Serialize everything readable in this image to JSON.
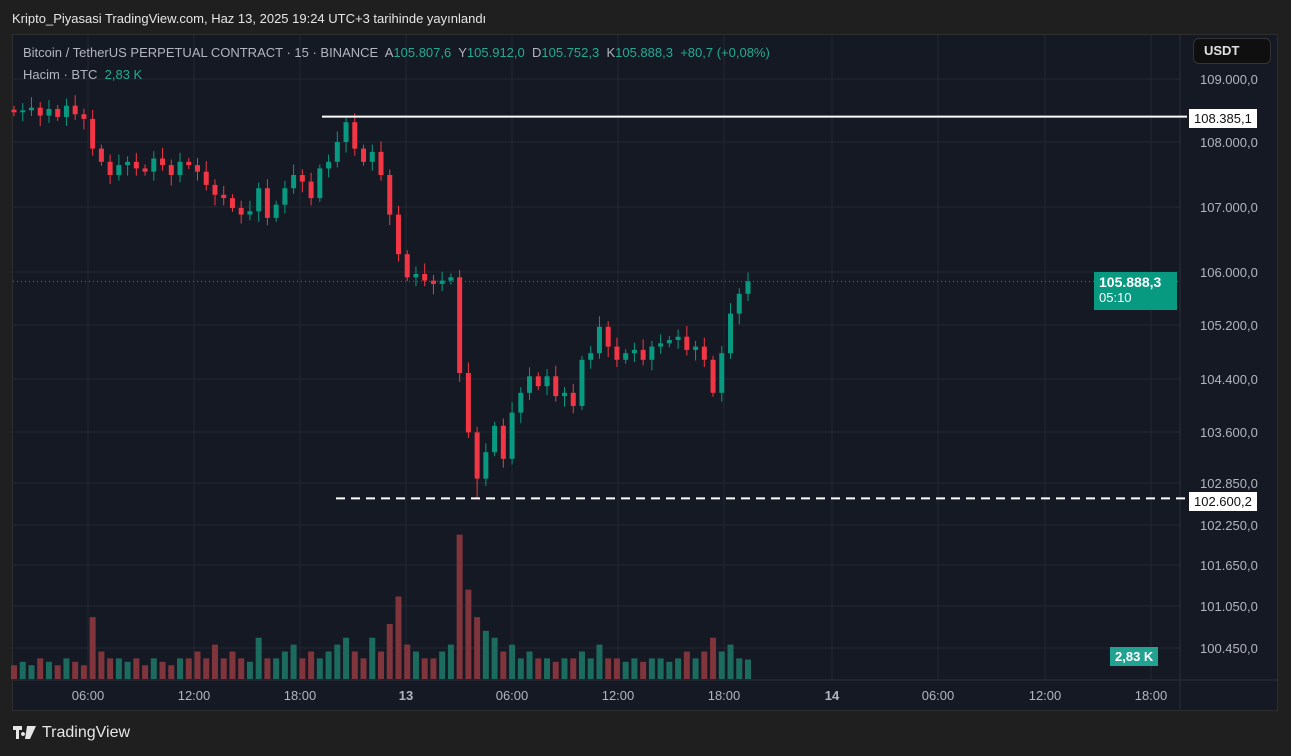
{
  "header": {
    "published": "Kripto_Piyasasi TradingView.com, Haz 13, 2025 19:24 UTC+3 tarihinde yayınlandı"
  },
  "legend": {
    "symbol": "Bitcoin / TetherUS PERPETUAL CONTRACT · 15 · BINANCE",
    "o_label": "A",
    "o": "105.807,6",
    "h_label": "Y",
    "h": "105.912,0",
    "l_label": "D",
    "l": "105.752,3",
    "c_label": "K",
    "c": "105.888,3",
    "change": "+80,7 (+0,08%)",
    "volume_label": "Hacim · BTC",
    "volume": "2,83 K"
  },
  "currency_button": "USDT",
  "price_tags": {
    "resistance": "108.385,1",
    "support": "102.600,2",
    "last_price": "105.888,3",
    "countdown": "05:10",
    "last_volume": "2,83 K"
  },
  "footer": {
    "brand": "TradingView"
  },
  "colors": {
    "up": "#089981",
    "down": "#f23645",
    "bg": "#151924"
  },
  "chart_data": {
    "type": "candlestick",
    "price_axis_labels": [
      "109.000,0",
      "108.000,0",
      "107.000,0",
      "106.000,0",
      "105.200,0",
      "104.400,0",
      "103.600,0",
      "102.850,0",
      "102.250,0",
      "101.650,0",
      "101.050,0",
      "100.450,0"
    ],
    "price_axis_values": [
      109000,
      108000,
      107000,
      106000,
      105200,
      104400,
      103600,
      102850,
      102250,
      101650,
      101050,
      100450
    ],
    "time_labels": [
      "06:00",
      "12:00",
      "18:00",
      "13",
      "06:00",
      "12:00",
      "18:00",
      "14",
      "06:00",
      "12:00",
      "18:00"
    ],
    "horizontal_lines": [
      {
        "price": 108385.1,
        "style": "solid"
      },
      {
        "price": 102600.2,
        "style": "dashed"
      }
    ],
    "last_price": 105888.3,
    "closes": [
      108450,
      108480,
      108520,
      108400,
      108500,
      108380,
      108550,
      108420,
      108350,
      107900,
      107700,
      107500,
      107650,
      107700,
      107600,
      107550,
      107750,
      107650,
      107500,
      107700,
      107650,
      107550,
      107350,
      107200,
      107150,
      107000,
      106900,
      106950,
      107300,
      106850,
      107050,
      107300,
      107500,
      107400,
      107150,
      107600,
      107700,
      108000,
      108300,
      107900,
      107700,
      107850,
      107500,
      106900,
      106300,
      105950,
      106000,
      105900,
      105850,
      105900,
      105950,
      104500,
      103600,
      102900,
      103300,
      103700,
      103200,
      103900,
      104200,
      104450,
      104300,
      104450,
      104150,
      104200,
      104000,
      104700,
      104800,
      105200,
      104900,
      104700,
      104800,
      104850,
      104700,
      104900,
      104950,
      105000,
      105050,
      104850,
      104900,
      104700,
      104200,
      104800,
      105400,
      105700,
      105888
    ],
    "volumes_k": [
      2,
      2.5,
      2,
      3,
      2.5,
      2,
      3,
      2.5,
      2,
      9,
      4,
      3,
      3,
      2.5,
      3,
      2,
      3,
      2.5,
      2,
      3,
      3,
      4,
      3,
      5,
      3,
      4,
      3,
      2.5,
      6,
      3,
      3,
      4,
      5,
      3,
      4,
      3,
      4,
      5,
      6,
      4,
      3,
      6,
      4,
      8,
      12,
      5,
      4,
      3,
      3,
      4,
      5,
      21,
      13,
      9,
      7,
      6,
      4,
      5,
      3,
      4,
      3,
      3,
      2.5,
      3,
      3,
      4,
      3,
      5,
      3,
      3,
      2.5,
      3,
      2.5,
      3,
      3,
      2.5,
      3,
      4,
      3,
      4,
      6,
      4,
      5,
      3,
      2.83
    ]
  }
}
